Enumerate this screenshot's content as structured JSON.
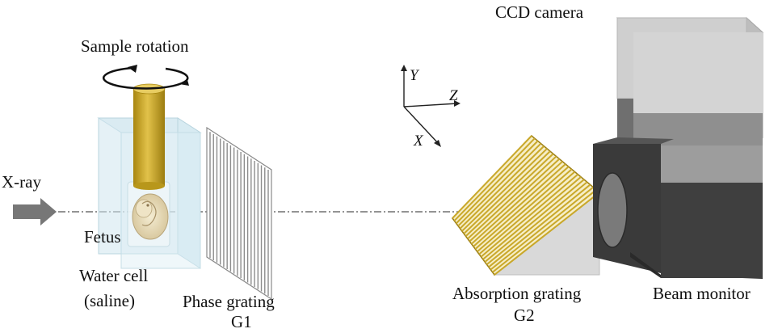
{
  "labels": {
    "xray": "X-ray",
    "sample_rotation": "Sample rotation",
    "fetus": "Fetus",
    "water_cell_line1": "Water cell",
    "water_cell_line2": "(saline)",
    "phase_grating_line1": "Phase grating",
    "phase_grating_line2": "G1",
    "absorption_grating_line1": "Absorption grating",
    "absorption_grating_line2": "G2",
    "ccd_camera": "CCD camera",
    "beam_monitor": "Beam monitor"
  },
  "axes": {
    "y": "Y",
    "z": "Z",
    "x": "X"
  },
  "colors": {
    "sample_rod": "#c8a21a",
    "water_cell": "#cfe6ef",
    "grating_g2": "#c9a82a",
    "camera_light": "#cfcfcf",
    "camera_mid": "#9a9a9a",
    "beam_monitor": "#444444",
    "xray_arrow": "#777777"
  },
  "phase_grating_lines": 18,
  "absorption_grating_lines": 22
}
